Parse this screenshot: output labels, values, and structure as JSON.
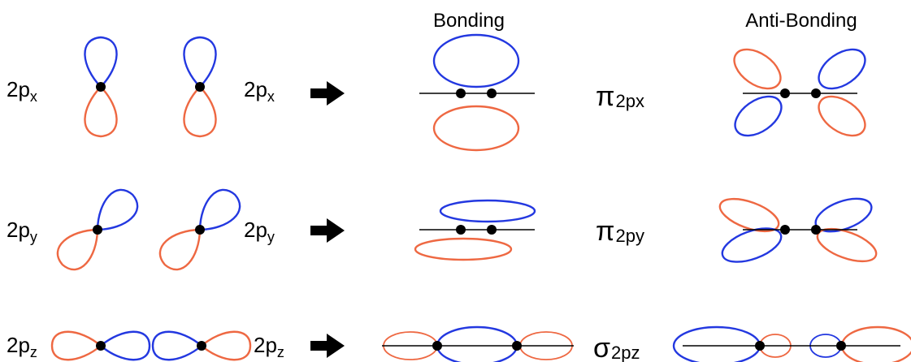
{
  "headers": {
    "bonding": "Bonding",
    "antibonding": "Anti-Bonding"
  },
  "rows": [
    {
      "left_label": {
        "main": "2p",
        "sub": "x"
      },
      "arrow_label": {
        "main": "2p",
        "sub": "x"
      },
      "mo_label": {
        "symbol": "π",
        "sub": "2px"
      }
    },
    {
      "left_label": {
        "main": "2p",
        "sub": "y"
      },
      "arrow_label": {
        "main": "2p",
        "sub": "y"
      },
      "mo_label": {
        "symbol": "π",
        "sub": "2py"
      }
    },
    {
      "left_label": {
        "main": "2p",
        "sub": "z"
      },
      "arrow_label": {
        "main": "2p",
        "sub": "z"
      },
      "mo_label": {
        "symbol": "σ",
        "sub": "2pz"
      }
    }
  ],
  "colors": {
    "positive_lobe": "#2338e0",
    "negative_lobe": "#ee6842",
    "nucleus": "#000000"
  },
  "icons": {
    "arrow": "right-arrow-icon"
  }
}
